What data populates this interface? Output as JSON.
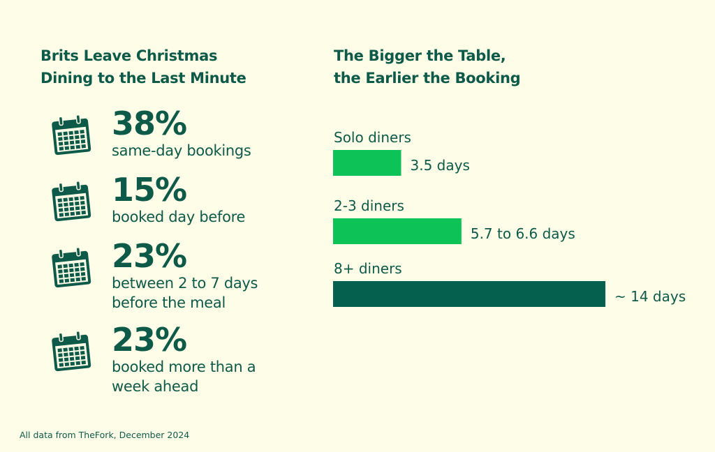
{
  "colors": {
    "background": "#fefde8",
    "text": "#0d5a48",
    "bright_green": "#0dc257",
    "dark_green": "#05604d"
  },
  "left_panel": {
    "heading_lines": [
      "Brits Leave Christmas",
      "Dining to the Last Minute"
    ],
    "stats": [
      {
        "icon": "calendar-icon",
        "percent": "38%",
        "desc_lines": [
          "same-day bookings"
        ]
      },
      {
        "icon": "calendar-icon",
        "percent": "15%",
        "desc_lines": [
          "booked day before"
        ]
      },
      {
        "icon": "calendar-icon",
        "percent": "23%",
        "desc_lines": [
          "between 2 to 7 days",
          "before the meal"
        ]
      },
      {
        "icon": "calendar-icon",
        "percent": "23%",
        "desc_lines": [
          "booked more than a",
          "week ahead"
        ]
      }
    ]
  },
  "right_panel": {
    "heading_lines": [
      "The Bigger the Table,",
      "the Earlier the Booking"
    ]
  },
  "chart_data": {
    "type": "bar",
    "orientation": "horizontal",
    "title": "The Bigger the Table, the Earlier the Booking",
    "categories": [
      "Solo diners",
      "2-3 diners",
      "8+ diners"
    ],
    "values": [
      3.5,
      6.6,
      14
    ],
    "value_labels": [
      "3.5 days",
      "5.7 to 6.6 days",
      "~ 14 days"
    ],
    "bar_colors": [
      "#0dc257",
      "#0dc257",
      "#05604d"
    ],
    "unit": "days",
    "xlim": [
      0,
      14
    ]
  },
  "footer": "All data from TheFork, December 2024"
}
